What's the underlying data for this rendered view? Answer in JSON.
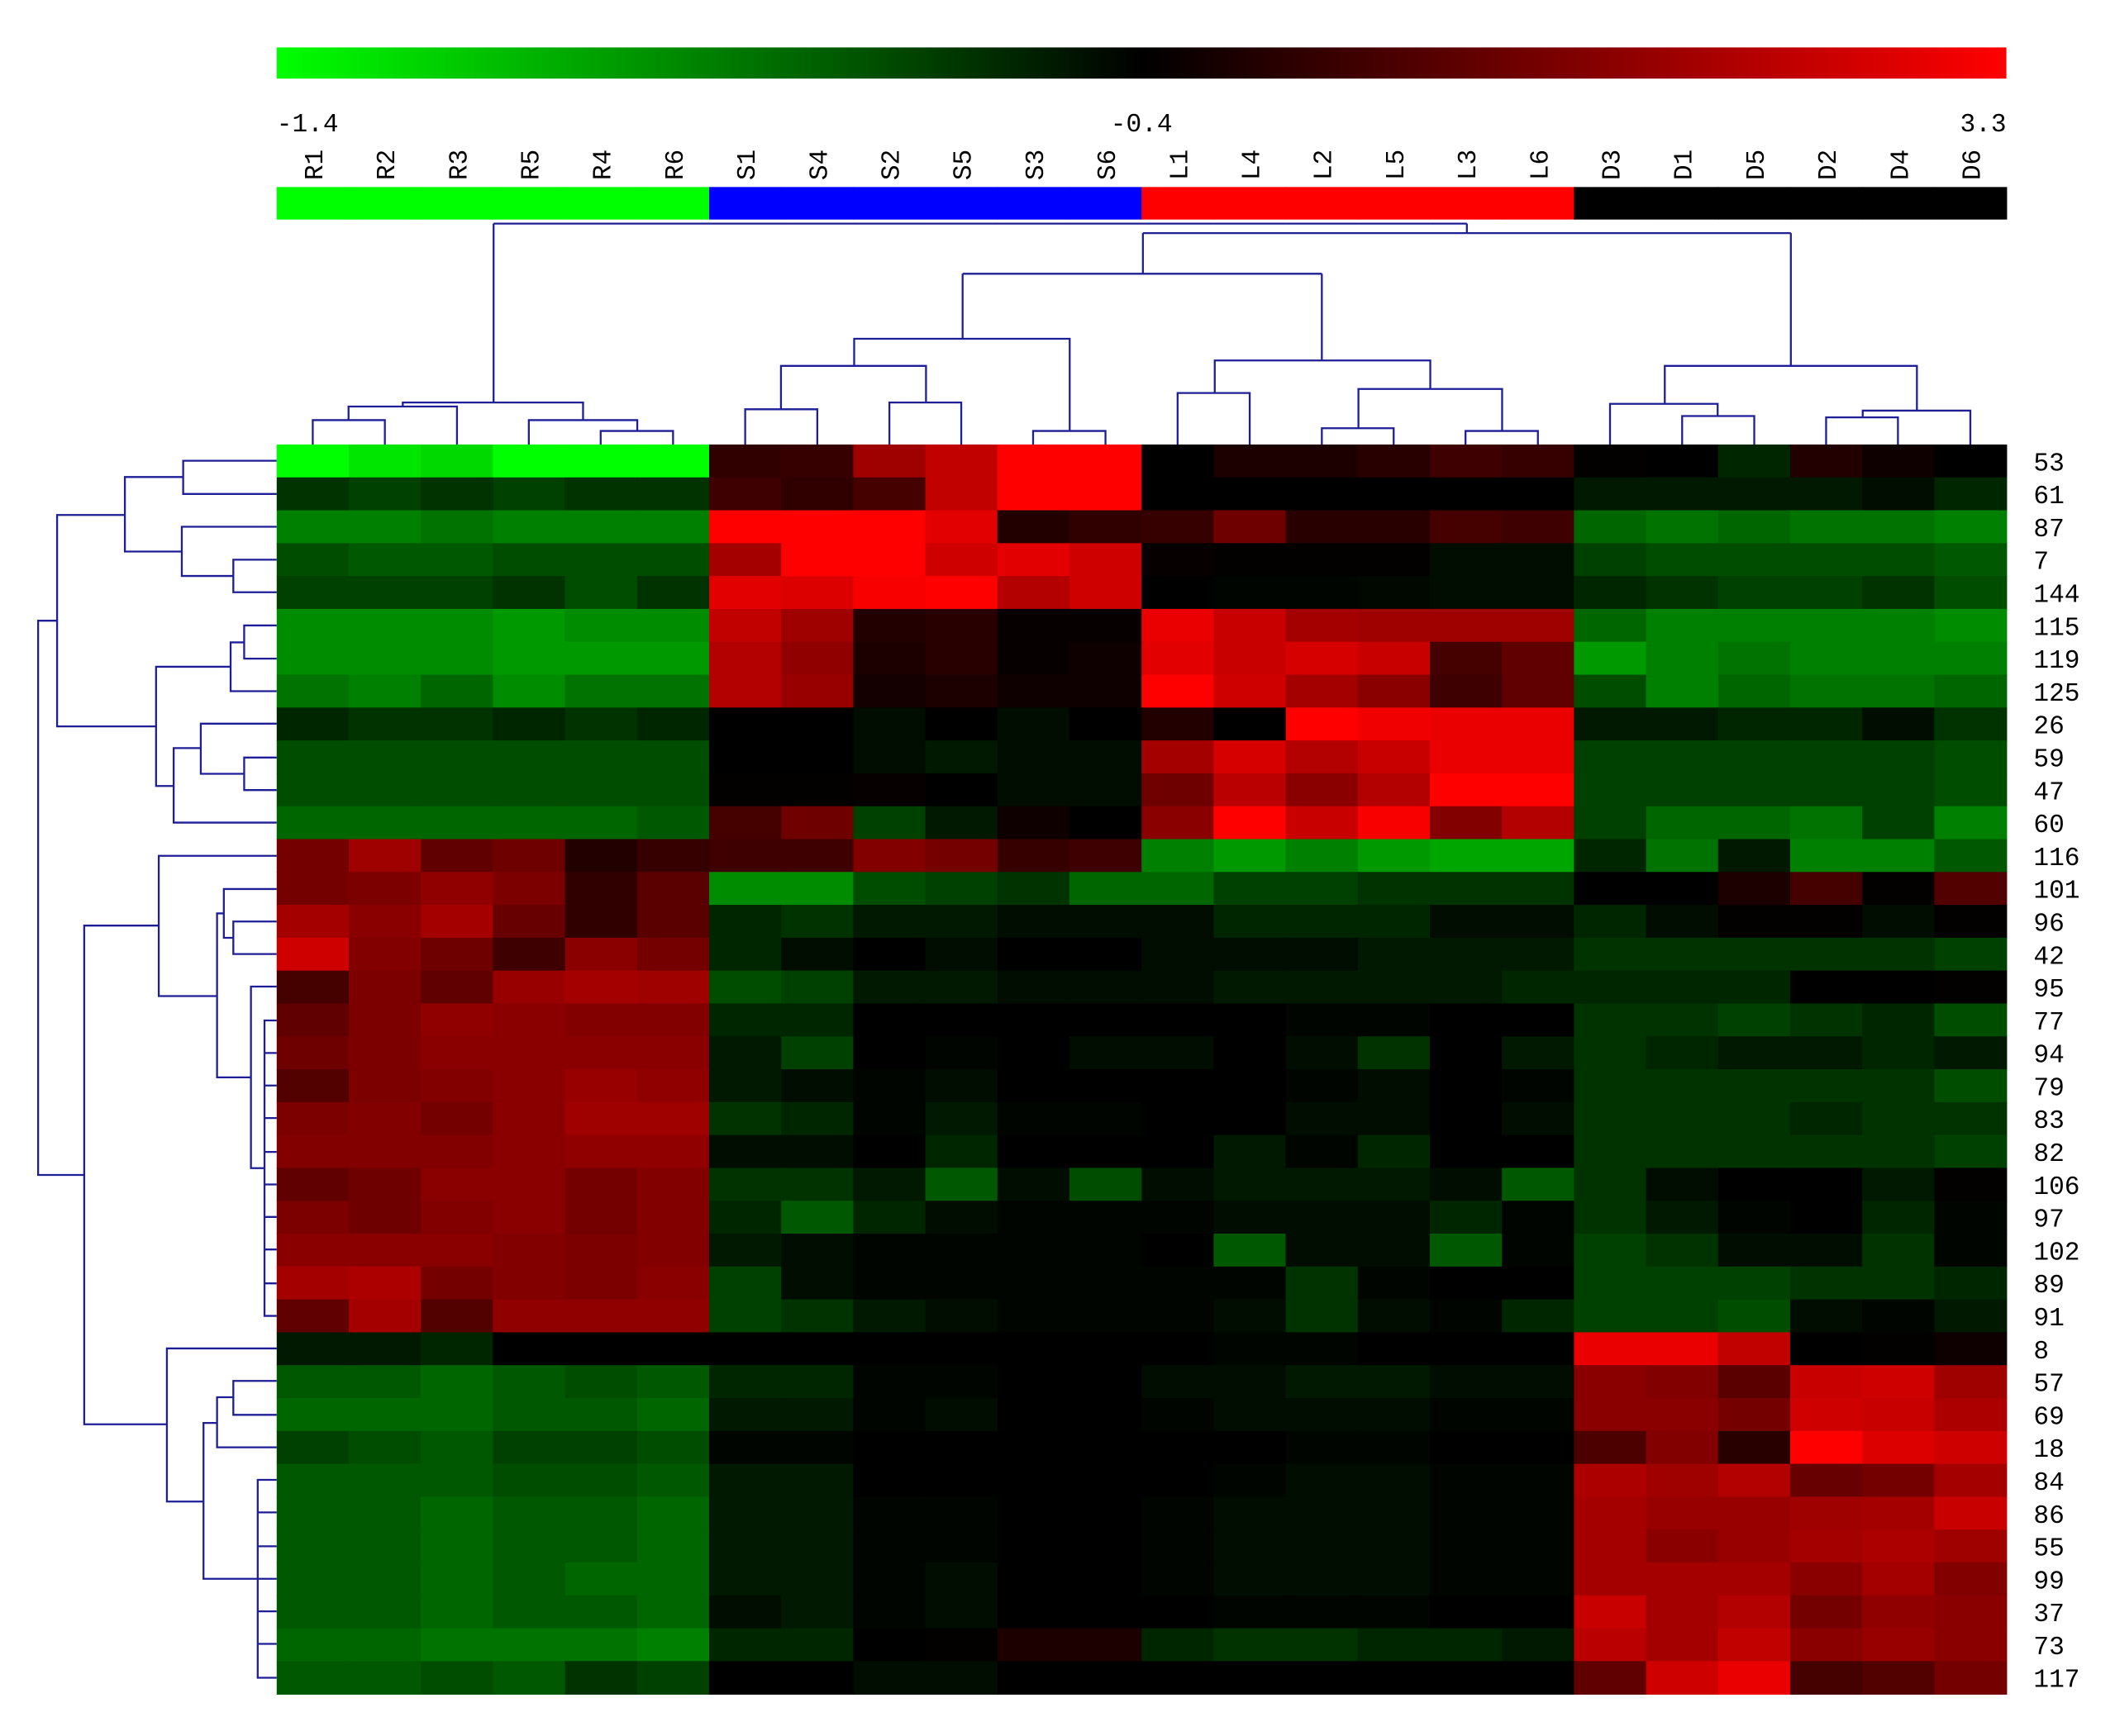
{
  "chart_data": {
    "type": "heatmap",
    "columns": [
      "R1",
      "R2",
      "R3",
      "R5",
      "R4",
      "R6",
      "S1",
      "S4",
      "S2",
      "S5",
      "S3",
      "S6",
      "L1",
      "L4",
      "L2",
      "L5",
      "L3",
      "L6",
      "D3",
      "D1",
      "D5",
      "D2",
      "D4",
      "D6"
    ],
    "column_colors": [
      "#00ff00",
      "#00ff00",
      "#00ff00",
      "#00ff00",
      "#00ff00",
      "#00ff00",
      "#0000ff",
      "#0000ff",
      "#0000ff",
      "#0000ff",
      "#0000ff",
      "#0000ff",
      "#ff0000",
      "#ff0000",
      "#ff0000",
      "#ff0000",
      "#ff0000",
      "#ff0000",
      "#000000",
      "#000000",
      "#000000",
      "#000000",
      "#000000",
      "#000000"
    ],
    "rows": [
      "53",
      "61",
      "87",
      "7",
      "144",
      "115",
      "119",
      "125",
      "26",
      "59",
      "47",
      "60",
      "116",
      "101",
      "96",
      "42",
      "95",
      "77",
      "94",
      "79",
      "83",
      "82",
      "106",
      "97",
      "102",
      "89",
      "91",
      "8",
      "57",
      "69",
      "18",
      "84",
      "86",
      "55",
      "99",
      "37",
      "73",
      "117"
    ],
    "color_scale": {
      "min": -1.4,
      "mid": -0.4,
      "max": 3.3,
      "colors": [
        "#00ff00",
        "#000000",
        "#ff0000"
      ],
      "ticks": [
        -1.4,
        -0.4,
        3.3
      ]
    },
    "values": [
      [
        -1.4,
        -1.3,
        -1.25,
        -1.4,
        -1.4,
        -1.4,
        0.3,
        0.4,
        1.9,
        2.4,
        3.3,
        3.3,
        -0.4,
        0.0,
        0.0,
        0.2,
        0.5,
        0.4,
        -0.35,
        -0.4,
        -0.55,
        0.1,
        -0.2,
        -0.4
      ],
      [
        -0.6,
        -0.65,
        -0.6,
        -0.65,
        -0.6,
        -0.6,
        0.5,
        0.3,
        0.6,
        2.4,
        3.3,
        3.3,
        -0.38,
        -0.38,
        -0.4,
        -0.4,
        -0.4,
        -0.4,
        -0.5,
        -0.5,
        -0.5,
        -0.5,
        -0.45,
        -0.55
      ],
      [
        -0.9,
        -0.9,
        -0.85,
        -0.9,
        -0.9,
        -0.9,
        3.3,
        3.3,
        3.3,
        2.9,
        0.1,
        0.3,
        0.4,
        1.2,
        0.2,
        0.2,
        0.6,
        0.5,
        -0.8,
        -0.85,
        -0.8,
        -0.85,
        -0.85,
        -0.9
      ],
      [
        -0.7,
        -0.75,
        -0.75,
        -0.7,
        -0.7,
        -0.7,
        2.0,
        3.3,
        3.3,
        2.6,
        2.9,
        2.6,
        -0.3,
        -0.35,
        -0.35,
        -0.35,
        -0.45,
        -0.45,
        -0.65,
        -0.7,
        -0.7,
        -0.7,
        -0.7,
        -0.75
      ],
      [
        -0.65,
        -0.65,
        -0.65,
        -0.6,
        -0.7,
        -0.6,
        2.9,
        2.8,
        3.2,
        3.3,
        2.2,
        2.6,
        -0.4,
        -0.42,
        -0.42,
        -0.43,
        -0.45,
        -0.45,
        -0.55,
        -0.6,
        -0.65,
        -0.65,
        -0.6,
        -0.7
      ],
      [
        -0.95,
        -0.95,
        -0.95,
        -1.0,
        -0.95,
        -0.95,
        2.4,
        1.9,
        0.1,
        0.2,
        -0.3,
        -0.3,
        3.0,
        2.5,
        2.0,
        1.9,
        1.9,
        1.9,
        -0.8,
        -0.9,
        -0.9,
        -0.9,
        -0.9,
        -0.95
      ],
      [
        -0.95,
        -0.95,
        -0.95,
        -1.0,
        -1.0,
        -1.0,
        2.2,
        1.7,
        0.0,
        0.2,
        -0.3,
        -0.2,
        2.9,
        2.5,
        2.7,
        2.5,
        0.6,
        1.0,
        -1.0,
        -0.9,
        -0.85,
        -0.9,
        -0.9,
        -0.9
      ],
      [
        -0.85,
        -0.9,
        -0.8,
        -0.95,
        -0.85,
        -0.85,
        2.2,
        1.8,
        -0.1,
        0.0,
        -0.2,
        -0.2,
        3.3,
        2.6,
        2.0,
        1.6,
        0.5,
        1.0,
        -0.7,
        -0.9,
        -0.8,
        -0.85,
        -0.85,
        -0.8
      ],
      [
        -0.55,
        -0.6,
        -0.6,
        -0.55,
        -0.6,
        -0.55,
        -0.4,
        -0.4,
        -0.45,
        -0.4,
        -0.45,
        -0.4,
        0.1,
        -0.4,
        3.3,
        3.1,
        3.0,
        3.0,
        -0.5,
        -0.5,
        -0.55,
        -0.55,
        -0.45,
        -0.6
      ],
      [
        -0.7,
        -0.7,
        -0.7,
        -0.7,
        -0.7,
        -0.7,
        -0.4,
        -0.4,
        -0.45,
        -0.5,
        -0.45,
        -0.45,
        2.0,
        2.7,
        2.2,
        2.5,
        3.0,
        3.0,
        -0.65,
        -0.65,
        -0.65,
        -0.65,
        -0.65,
        -0.7
      ],
      [
        -0.7,
        -0.7,
        -0.7,
        -0.7,
        -0.7,
        -0.7,
        -0.35,
        -0.35,
        -0.3,
        -0.4,
        -0.45,
        -0.45,
        1.2,
        2.3,
        1.6,
        2.2,
        3.3,
        3.3,
        -0.65,
        -0.65,
        -0.65,
        -0.65,
        -0.65,
        -0.7
      ],
      [
        -0.8,
        -0.8,
        -0.8,
        -0.8,
        -0.8,
        -0.75,
        0.6,
        1.2,
        -0.65,
        -0.5,
        -0.2,
        -0.4,
        1.6,
        3.3,
        2.5,
        3.2,
        1.5,
        2.2,
        -0.65,
        -0.8,
        -0.8,
        -0.85,
        -0.65,
        -0.9
      ],
      [
        1.3,
        1.9,
        1.0,
        1.2,
        0.1,
        0.4,
        0.5,
        0.5,
        1.5,
        1.3,
        0.4,
        0.5,
        -0.9,
        -1.0,
        -0.9,
        -1.0,
        -1.05,
        -1.05,
        -0.55,
        -0.85,
        -0.5,
        -0.9,
        -0.9,
        -0.75
      ],
      [
        1.3,
        1.4,
        1.7,
        1.4,
        0.3,
        0.9,
        -0.95,
        -0.95,
        -0.7,
        -0.65,
        -0.6,
        -0.8,
        -0.8,
        -0.65,
        -0.65,
        -0.6,
        -0.6,
        -0.6,
        -0.4,
        -0.38,
        0.0,
        0.6,
        -0.35,
        0.8
      ],
      [
        2.0,
        1.6,
        2.0,
        1.1,
        0.3,
        0.9,
        -0.55,
        -0.6,
        -0.5,
        -0.5,
        -0.45,
        -0.45,
        -0.45,
        -0.55,
        -0.55,
        -0.55,
        -0.45,
        -0.45,
        -0.55,
        -0.45,
        -0.35,
        -0.35,
        -0.45,
        -0.35
      ],
      [
        2.6,
        1.5,
        1.2,
        0.5,
        1.6,
        1.3,
        -0.55,
        -0.45,
        -0.4,
        -0.45,
        -0.4,
        -0.4,
        -0.45,
        -0.45,
        -0.45,
        -0.5,
        -0.5,
        -0.5,
        -0.6,
        -0.6,
        -0.6,
        -0.6,
        -0.6,
        -0.65
      ],
      [
        0.6,
        1.4,
        1.0,
        1.8,
        2.0,
        1.9,
        -0.7,
        -0.65,
        -0.5,
        -0.5,
        -0.45,
        -0.45,
        -0.45,
        -0.5,
        -0.5,
        -0.5,
        -0.5,
        -0.55,
        -0.55,
        -0.55,
        -0.55,
        -0.4,
        -0.4,
        -0.35
      ],
      [
        1.0,
        1.4,
        1.7,
        1.6,
        1.5,
        1.5,
        -0.55,
        -0.55,
        -0.4,
        -0.4,
        -0.4,
        -0.4,
        -0.4,
        -0.4,
        -0.42,
        -0.42,
        -0.4,
        -0.4,
        -0.6,
        -0.6,
        -0.65,
        -0.6,
        -0.55,
        -0.7
      ],
      [
        1.2,
        1.4,
        1.6,
        1.6,
        1.6,
        1.6,
        -0.5,
        -0.65,
        -0.4,
        -0.42,
        -0.4,
        -0.45,
        -0.45,
        -0.4,
        -0.45,
        -0.6,
        -0.4,
        -0.5,
        -0.6,
        -0.55,
        -0.5,
        -0.5,
        -0.55,
        -0.5
      ],
      [
        0.8,
        1.4,
        1.5,
        1.6,
        1.8,
        1.7,
        -0.5,
        -0.45,
        -0.42,
        -0.45,
        -0.4,
        -0.4,
        -0.4,
        -0.4,
        -0.42,
        -0.45,
        -0.4,
        -0.42,
        -0.6,
        -0.6,
        -0.6,
        -0.6,
        -0.6,
        -0.7
      ],
      [
        1.4,
        1.5,
        1.3,
        1.6,
        1.9,
        1.9,
        -0.6,
        -0.55,
        -0.42,
        -0.5,
        -0.42,
        -0.42,
        -0.4,
        -0.4,
        -0.45,
        -0.45,
        -0.4,
        -0.45,
        -0.6,
        -0.6,
        -0.6,
        -0.55,
        -0.6,
        -0.6
      ],
      [
        1.5,
        1.5,
        1.5,
        1.6,
        1.7,
        1.7,
        -0.45,
        -0.45,
        -0.4,
        -0.55,
        -0.4,
        -0.4,
        -0.4,
        -0.5,
        -0.42,
        -0.55,
        -0.4,
        -0.4,
        -0.6,
        -0.6,
        -0.6,
        -0.6,
        -0.6,
        -0.65
      ],
      [
        1.0,
        1.2,
        1.6,
        1.6,
        1.3,
        1.5,
        -0.6,
        -0.6,
        -0.5,
        -0.75,
        -0.45,
        -0.7,
        -0.45,
        -0.5,
        -0.5,
        -0.5,
        -0.45,
        -0.75,
        -0.6,
        -0.45,
        -0.38,
        -0.38,
        -0.5,
        -0.35
      ],
      [
        1.4,
        1.2,
        1.5,
        1.6,
        1.3,
        1.5,
        -0.55,
        -0.75,
        -0.55,
        -0.45,
        -0.42,
        -0.42,
        -0.42,
        -0.45,
        -0.45,
        -0.45,
        -0.55,
        -0.42,
        -0.6,
        -0.5,
        -0.42,
        -0.4,
        -0.55,
        -0.42
      ],
      [
        1.6,
        1.6,
        1.6,
        1.5,
        1.4,
        1.5,
        -0.5,
        -0.45,
        -0.42,
        -0.42,
        -0.42,
        -0.42,
        -0.4,
        -0.75,
        -0.45,
        -0.45,
        -0.75,
        -0.42,
        -0.65,
        -0.6,
        -0.45,
        -0.45,
        -0.6,
        -0.42
      ],
      [
        2.0,
        2.1,
        1.3,
        1.5,
        1.4,
        1.6,
        -0.65,
        -0.45,
        -0.42,
        -0.42,
        -0.42,
        -0.42,
        -0.42,
        -0.42,
        -0.6,
        -0.42,
        -0.4,
        -0.4,
        -0.65,
        -0.65,
        -0.65,
        -0.6,
        -0.6,
        -0.55
      ],
      [
        1.0,
        2.0,
        0.8,
        1.7,
        1.7,
        1.7,
        -0.65,
        -0.6,
        -0.5,
        -0.45,
        -0.42,
        -0.42,
        -0.42,
        -0.45,
        -0.6,
        -0.45,
        -0.42,
        -0.55,
        -0.65,
        -0.65,
        -0.7,
        -0.45,
        -0.42,
        -0.5
      ],
      [
        -0.5,
        -0.5,
        -0.55,
        -0.4,
        -0.4,
        -0.4,
        -0.4,
        -0.4,
        -0.4,
        -0.4,
        -0.4,
        -0.4,
        -0.4,
        -0.42,
        -0.42,
        -0.4,
        -0.4,
        -0.4,
        3.0,
        3.0,
        2.4,
        -0.4,
        -0.35,
        -0.2
      ],
      [
        -0.75,
        -0.75,
        -0.8,
        -0.75,
        -0.7,
        -0.75,
        -0.55,
        -0.55,
        -0.42,
        -0.42,
        -0.4,
        -0.4,
        -0.45,
        -0.45,
        -0.5,
        -0.5,
        -0.45,
        -0.45,
        1.6,
        1.5,
        0.9,
        2.5,
        2.6,
        1.9
      ],
      [
        -0.8,
        -0.8,
        -0.8,
        -0.75,
        -0.75,
        -0.8,
        -0.5,
        -0.5,
        -0.42,
        -0.45,
        -0.4,
        -0.4,
        -0.42,
        -0.45,
        -0.45,
        -0.45,
        -0.42,
        -0.42,
        1.6,
        1.6,
        1.3,
        2.6,
        2.5,
        2.1
      ],
      [
        -0.65,
        -0.7,
        -0.75,
        -0.65,
        -0.65,
        -0.7,
        -0.42,
        -0.42,
        -0.4,
        -0.4,
        -0.4,
        -0.4,
        -0.4,
        -0.4,
        -0.42,
        -0.42,
        -0.4,
        -0.4,
        0.7,
        1.5,
        0.2,
        3.3,
        2.8,
        2.6
      ],
      [
        -0.75,
        -0.75,
        -0.75,
        -0.7,
        -0.7,
        -0.75,
        -0.5,
        -0.5,
        -0.4,
        -0.4,
        -0.4,
        -0.4,
        -0.4,
        -0.42,
        -0.45,
        -0.45,
        -0.42,
        -0.42,
        2.1,
        1.9,
        2.2,
        1.1,
        1.3,
        2.0
      ],
      [
        -0.75,
        -0.75,
        -0.8,
        -0.75,
        -0.75,
        -0.8,
        -0.5,
        -0.5,
        -0.42,
        -0.42,
        -0.4,
        -0.4,
        -0.42,
        -0.45,
        -0.45,
        -0.45,
        -0.42,
        -0.42,
        2.0,
        1.8,
        1.8,
        1.9,
        2.0,
        2.5
      ],
      [
        -0.75,
        -0.75,
        -0.8,
        -0.75,
        -0.75,
        -0.8,
        -0.5,
        -0.5,
        -0.42,
        -0.42,
        -0.4,
        -0.4,
        -0.42,
        -0.45,
        -0.45,
        -0.45,
        -0.42,
        -0.42,
        2.0,
        1.6,
        1.8,
        2.0,
        2.1,
        1.9
      ],
      [
        -0.75,
        -0.75,
        -0.8,
        -0.75,
        -0.8,
        -0.8,
        -0.5,
        -0.5,
        -0.42,
        -0.45,
        -0.4,
        -0.4,
        -0.42,
        -0.45,
        -0.45,
        -0.45,
        -0.42,
        -0.42,
        2.0,
        2.0,
        2.0,
        1.6,
        2.0,
        1.5
      ],
      [
        -0.75,
        -0.75,
        -0.8,
        -0.75,
        -0.75,
        -0.8,
        -0.45,
        -0.5,
        -0.42,
        -0.45,
        -0.4,
        -0.4,
        -0.4,
        -0.42,
        -0.42,
        -0.42,
        -0.4,
        -0.4,
        2.5,
        2.0,
        2.2,
        1.3,
        1.7,
        1.6
      ],
      [
        -0.8,
        -0.8,
        -0.85,
        -0.85,
        -0.85,
        -0.9,
        -0.55,
        -0.55,
        -0.4,
        -0.35,
        0.0,
        0.0,
        -0.55,
        -0.6,
        -0.6,
        -0.55,
        -0.55,
        -0.5,
        2.3,
        2.0,
        2.4,
        1.6,
        1.8,
        1.6
      ],
      [
        -0.75,
        -0.75,
        -0.7,
        -0.75,
        -0.6,
        -0.65,
        -0.4,
        -0.4,
        -0.45,
        -0.45,
        -0.4,
        -0.4,
        -0.4,
        -0.4,
        -0.4,
        -0.4,
        -0.4,
        -0.4,
        1.0,
        2.6,
        3.0,
        0.6,
        0.8,
        1.3
      ]
    ]
  }
}
